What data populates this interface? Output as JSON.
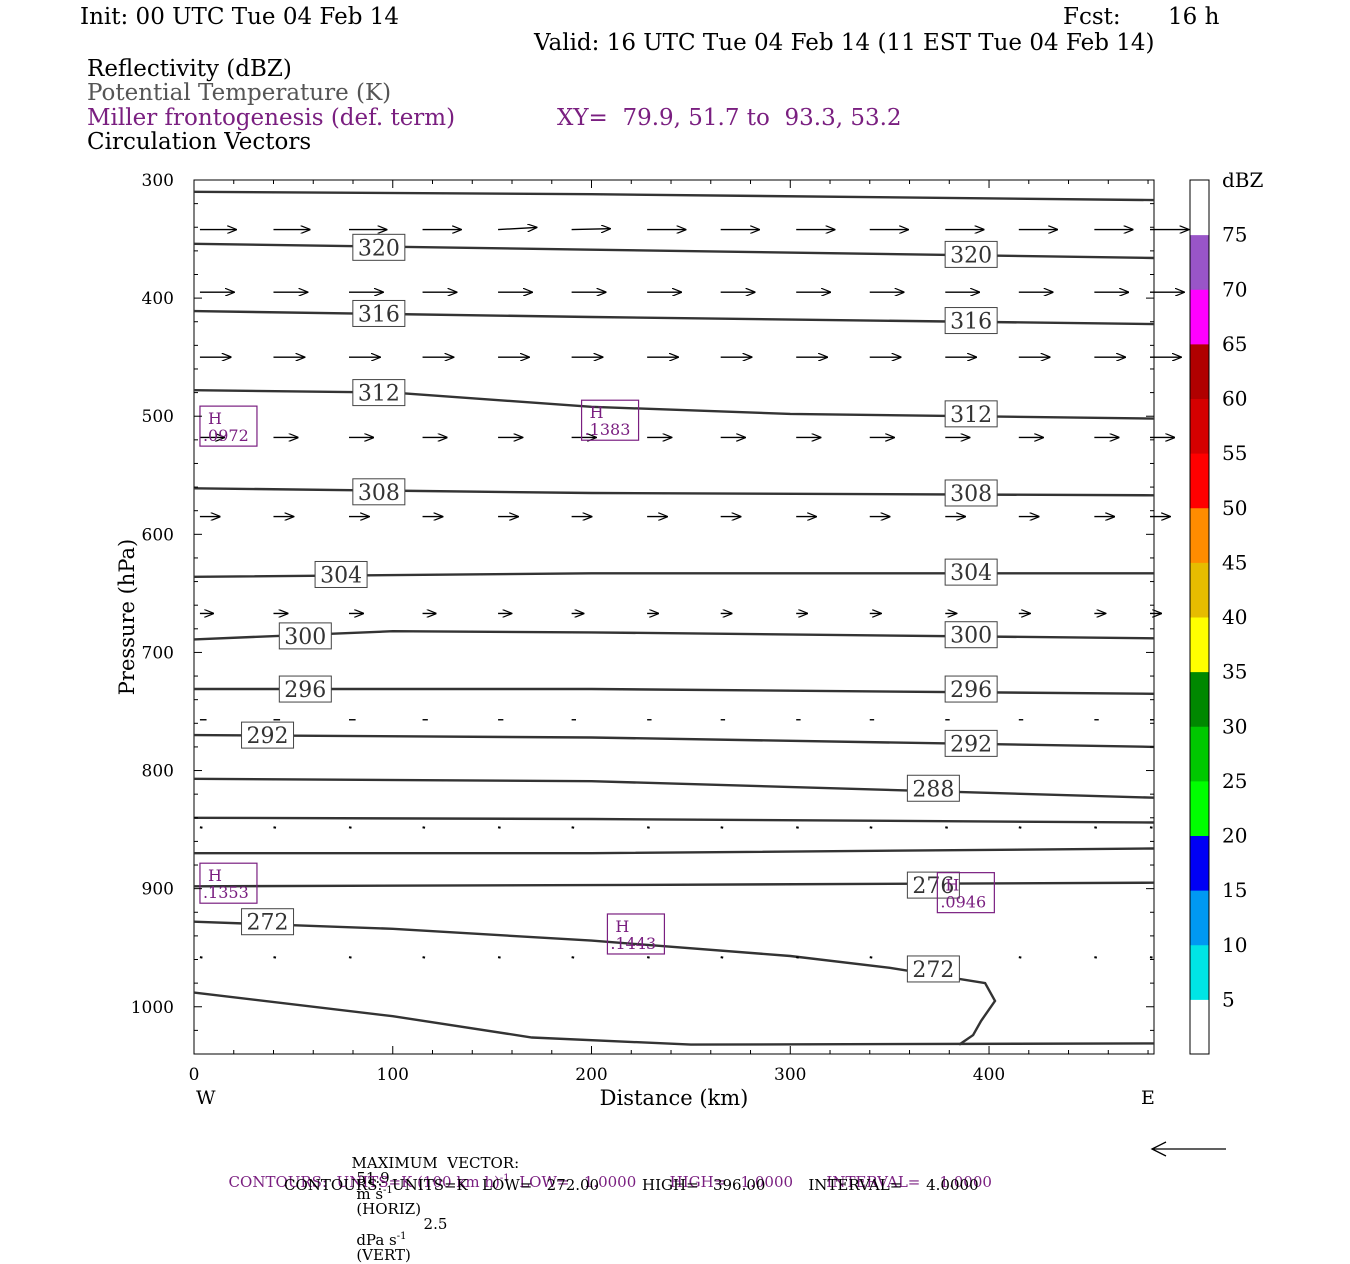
{
  "header": {
    "init": "Init: 00 UTC Tue 04 Feb 14",
    "fcst_label": "Fcst:",
    "fcst_value": "16 h",
    "valid": "Valid: 16 UTC Tue 04 Feb 14 (11 EST Tue 04 Feb 14)",
    "field1": "Reflectivity (dBZ)",
    "field2": "Potential Temperature (K)",
    "field3": "Miller frontogenesis (def. term)",
    "xy": "XY=  79.9, 51.7 to  93.3, 53.2",
    "field4": "Circulation Vectors"
  },
  "colors": {
    "purple": "#7a1f80",
    "gray": "#555555",
    "theta_line": "#333333"
  },
  "chart_data": {
    "type": "cross-section",
    "xlabel": "Distance (km)",
    "ylabel": "Pressure (hPa)",
    "xlim": [
      0,
      483
    ],
    "ylim": [
      300,
      1040
    ],
    "y_scale": "linear, inverted (pressure increases downward)",
    "x_ticks": [
      0,
      100,
      200,
      300,
      400
    ],
    "y_ticks": [
      300,
      400,
      500,
      600,
      700,
      800,
      900,
      1000
    ],
    "left_end_label": "W",
    "right_end_label": "E",
    "grid": false,
    "potential_temperature": [
      {
        "theta": "",
        "points": [
          [
            0,
            310
          ],
          [
            200,
            312
          ],
          [
            483,
            317
          ]
        ]
      },
      {
        "theta": "320",
        "points": [
          [
            0,
            354
          ],
          [
            200,
            359
          ],
          [
            483,
            366
          ]
        ]
      },
      {
        "theta": "316",
        "points": [
          [
            0,
            411
          ],
          [
            200,
            416
          ],
          [
            483,
            422
          ]
        ]
      },
      {
        "theta": "312",
        "points": [
          [
            0,
            478
          ],
          [
            100,
            480
          ],
          [
            200,
            492
          ],
          [
            300,
            498
          ],
          [
            483,
            502
          ]
        ]
      },
      {
        "theta": "308",
        "points": [
          [
            0,
            561
          ],
          [
            200,
            565
          ],
          [
            483,
            567
          ]
        ]
      },
      {
        "theta": "304",
        "points": [
          [
            0,
            636
          ],
          [
            200,
            633
          ],
          [
            483,
            633
          ]
        ]
      },
      {
        "theta": "300",
        "points": [
          [
            0,
            689
          ],
          [
            100,
            682
          ],
          [
            200,
            683
          ],
          [
            483,
            688
          ]
        ]
      },
      {
        "theta": "296",
        "points": [
          [
            0,
            731
          ],
          [
            200,
            731
          ],
          [
            483,
            735
          ]
        ]
      },
      {
        "theta": "292",
        "points": [
          [
            0,
            770
          ],
          [
            200,
            772
          ],
          [
            483,
            780
          ]
        ]
      },
      {
        "theta": "288",
        "points": [
          [
            0,
            807
          ],
          [
            200,
            809
          ],
          [
            483,
            823
          ]
        ]
      },
      {
        "theta": "",
        "points": [
          [
            0,
            840
          ],
          [
            200,
            841
          ],
          [
            483,
            844
          ]
        ]
      },
      {
        "theta": "",
        "points": [
          [
            0,
            870
          ],
          [
            200,
            870
          ],
          [
            483,
            866
          ]
        ]
      },
      {
        "theta": "276",
        "points": [
          [
            0,
            898
          ],
          [
            200,
            897
          ],
          [
            483,
            895
          ]
        ]
      },
      {
        "theta": "272",
        "points": [
          [
            0,
            928
          ],
          [
            100,
            934
          ],
          [
            200,
            944
          ],
          [
            300,
            957
          ],
          [
            350,
            967
          ],
          [
            398,
            980
          ],
          [
            403,
            995
          ],
          [
            396,
            1012
          ],
          [
            392,
            1024
          ],
          [
            385,
            1032
          ]
        ]
      },
      {
        "theta": "",
        "points": [
          [
            0,
            988
          ],
          [
            100,
            1008
          ],
          [
            170,
            1026
          ],
          [
            250,
            1032
          ],
          [
            483,
            1031
          ]
        ]
      }
    ],
    "theta_labels": [
      {
        "text": "320",
        "x": 93,
        "p": 357
      },
      {
        "text": "320",
        "x": 391,
        "p": 363
      },
      {
        "text": "316",
        "x": 93,
        "p": 413
      },
      {
        "text": "316",
        "x": 391,
        "p": 419
      },
      {
        "text": "312",
        "x": 93,
        "p": 480
      },
      {
        "text": "312",
        "x": 391,
        "p": 498
      },
      {
        "text": "308",
        "x": 93,
        "p": 564
      },
      {
        "text": "308",
        "x": 391,
        "p": 565
      },
      {
        "text": "304",
        "x": 74,
        "p": 634
      },
      {
        "text": "304",
        "x": 391,
        "p": 632
      },
      {
        "text": "300",
        "x": 56,
        "p": 686
      },
      {
        "text": "300",
        "x": 391,
        "p": 685
      },
      {
        "text": "296",
        "x": 56,
        "p": 731
      },
      {
        "text": "296",
        "x": 391,
        "p": 731
      },
      {
        "text": "292",
        "x": 37,
        "p": 770
      },
      {
        "text": "292",
        "x": 391,
        "p": 777
      },
      {
        "text": "288",
        "x": 372,
        "p": 815
      },
      {
        "text": "276",
        "x": 372,
        "p": 897
      },
      {
        "text": "272",
        "x": 37,
        "p": 928
      },
      {
        "text": "272",
        "x": 372,
        "p": 968
      }
    ],
    "frontogenesis_highs": [
      {
        "label": "H",
        "value": ".0972",
        "x": 3,
        "p": 505
      },
      {
        "label": "H",
        "value": ".1383",
        "x": 195,
        "p": 500
      },
      {
        "label": "H",
        "value": ".1353",
        "x": 3,
        "p": 892
      },
      {
        "label": "H",
        "value": ".1443",
        "x": 208,
        "p": 935
      },
      {
        "label": "H",
        "value": ".0946",
        "x": 374,
        "p": 900
      }
    ],
    "vector_rows": [
      {
        "p": 342,
        "u": [
          0.82,
          0.82,
          0.85,
          0.87,
          0.87,
          0.87,
          0.87,
          0.87,
          0.87,
          0.87,
          0.87,
          0.87,
          0.87,
          0.87
        ],
        "w": [
          0.0,
          0.0,
          0.0,
          0.0,
          0.05,
          0.02,
          0.0,
          0.0,
          0.0,
          0.0,
          0.0,
          0.0,
          0.0,
          0.0
        ]
      },
      {
        "p": 395,
        "u": [
          0.77,
          0.77,
          0.77,
          0.77,
          0.77,
          0.77,
          0.77,
          0.77,
          0.77,
          0.77,
          0.77,
          0.77,
          0.77,
          0.77
        ],
        "w": [
          0.0,
          0.0,
          0.0,
          0.0,
          0.0,
          0.0,
          0.0,
          0.0,
          0.0,
          0.0,
          0.0,
          0.0,
          0.0,
          0.0
        ]
      },
      {
        "p": 450,
        "u": [
          0.7,
          0.7,
          0.7,
          0.7,
          0.7,
          0.7,
          0.7,
          0.7,
          0.7,
          0.7,
          0.7,
          0.7,
          0.7,
          0.7
        ],
        "w": [
          0.0,
          0.0,
          0.0,
          0.0,
          0.0,
          0.0,
          0.0,
          0.0,
          0.0,
          0.0,
          0.0,
          0.0,
          0.0,
          0.0
        ]
      },
      {
        "p": 518,
        "u": [
          0.55,
          0.55,
          0.55,
          0.55,
          0.55,
          0.55,
          0.55,
          0.55,
          0.55,
          0.55,
          0.55,
          0.55,
          0.55,
          0.55
        ],
        "w": [
          0.0,
          0.0,
          0.0,
          0.0,
          0.0,
          0.0,
          0.0,
          0.0,
          0.0,
          0.0,
          0.0,
          0.0,
          0.0,
          0.0
        ]
      },
      {
        "p": 585,
        "u": [
          0.45,
          0.45,
          0.45,
          0.45,
          0.45,
          0.45,
          0.45,
          0.45,
          0.45,
          0.45,
          0.45,
          0.45,
          0.45,
          0.45
        ],
        "w": [
          0.0,
          0.0,
          0.0,
          0.0,
          0.0,
          0.0,
          0.0,
          0.0,
          0.0,
          0.0,
          0.0,
          0.0,
          0.0,
          0.0
        ]
      },
      {
        "p": 667,
        "u": [
          0.3,
          0.32,
          0.32,
          0.3,
          0.3,
          0.27,
          0.25,
          0.25,
          0.25,
          0.25,
          0.25,
          0.25,
          0.25,
          0.25
        ],
        "w": [
          0.0,
          0.0,
          0.0,
          0.0,
          0.0,
          0.0,
          0.0,
          0.0,
          0.0,
          0.0,
          0.0,
          0.0,
          0.0,
          0.0
        ]
      },
      {
        "p": 757,
        "u": [
          0.15,
          0.15,
          0.15,
          0.12,
          0.12,
          0.1,
          0.1,
          0.1,
          0.1,
          0.1,
          0.1,
          0.1,
          0.1,
          0.1
        ],
        "w": [
          0.0,
          0.0,
          0.0,
          0.0,
          0.0,
          0.0,
          0.0,
          0.0,
          0.0,
          0.0,
          0.0,
          0.0,
          0.0,
          0.0
        ]
      },
      {
        "p": 848,
        "u": [
          0.02,
          0.02,
          0.02,
          0.02,
          0.02,
          0.02,
          0.02,
          0.02,
          0.02,
          0.02,
          0.02,
          0.02,
          0.02,
          0.02
        ],
        "w": [
          0.0,
          0.0,
          0.0,
          0.0,
          0.0,
          0.0,
          0.0,
          0.0,
          0.0,
          0.0,
          0.0,
          0.0,
          0.0,
          0.0
        ]
      },
      {
        "p": 958,
        "u": [
          0.01,
          0.01,
          0.01,
          0.01,
          0.01,
          0.01,
          0.01,
          0.01,
          0.01,
          0.01,
          0.01,
          0.01,
          0.01,
          0.01
        ],
        "w": [
          0.0,
          0.0,
          0.0,
          0.0,
          0.0,
          0.0,
          0.0,
          0.0,
          0.0,
          0.0,
          0.0,
          0.0,
          0.0,
          0.0
        ]
      }
    ],
    "vector_x_positions": [
      5,
      42,
      80,
      117,
      155,
      192,
      230,
      267,
      305,
      342,
      380,
      417,
      455,
      483
    ]
  },
  "colorbar": {
    "unit": "dBZ",
    "levels": [
      "5",
      "10",
      "15",
      "20",
      "25",
      "30",
      "35",
      "40",
      "45",
      "50",
      "55",
      "60",
      "65",
      "70",
      "75"
    ],
    "colors": [
      "#ffffff",
      "#00e5e5",
      "#0099f2",
      "#0000f5",
      "#00ff00",
      "#00c800",
      "#008800",
      "#ffff00",
      "#e6bc00",
      "#ff8c00",
      "#ff0000",
      "#d50000",
      "#b00000",
      "#ff00ff",
      "#9955c8",
      "#ffffff"
    ]
  },
  "footer": {
    "max_vector_prefix": "MAXIMUM  VECTOR:",
    "max_horiz_value": "51.9",
    "max_horiz_units_pre": "m s",
    "max_horiz_exp": "-1",
    "max_horiz_label": "(HORIZ)",
    "max_vert_value": "2.5",
    "max_vert_units_pre": "dPa s",
    "max_vert_exp": "-1",
    "max_vert_label": "(VERT)",
    "contours1_pre": "CONTOURS:  UNITS=K (100 km h)",
    "contours1_exp": "-1",
    "contours1_post": "  LOW=   1.0000       HIGH=   1.0000       INTERVAL=    1.0000",
    "contours2": "CONTOURS:  UNITS=K   LOW=   272.00         HIGH=   396.00         INTERVAL=     4.0000"
  }
}
